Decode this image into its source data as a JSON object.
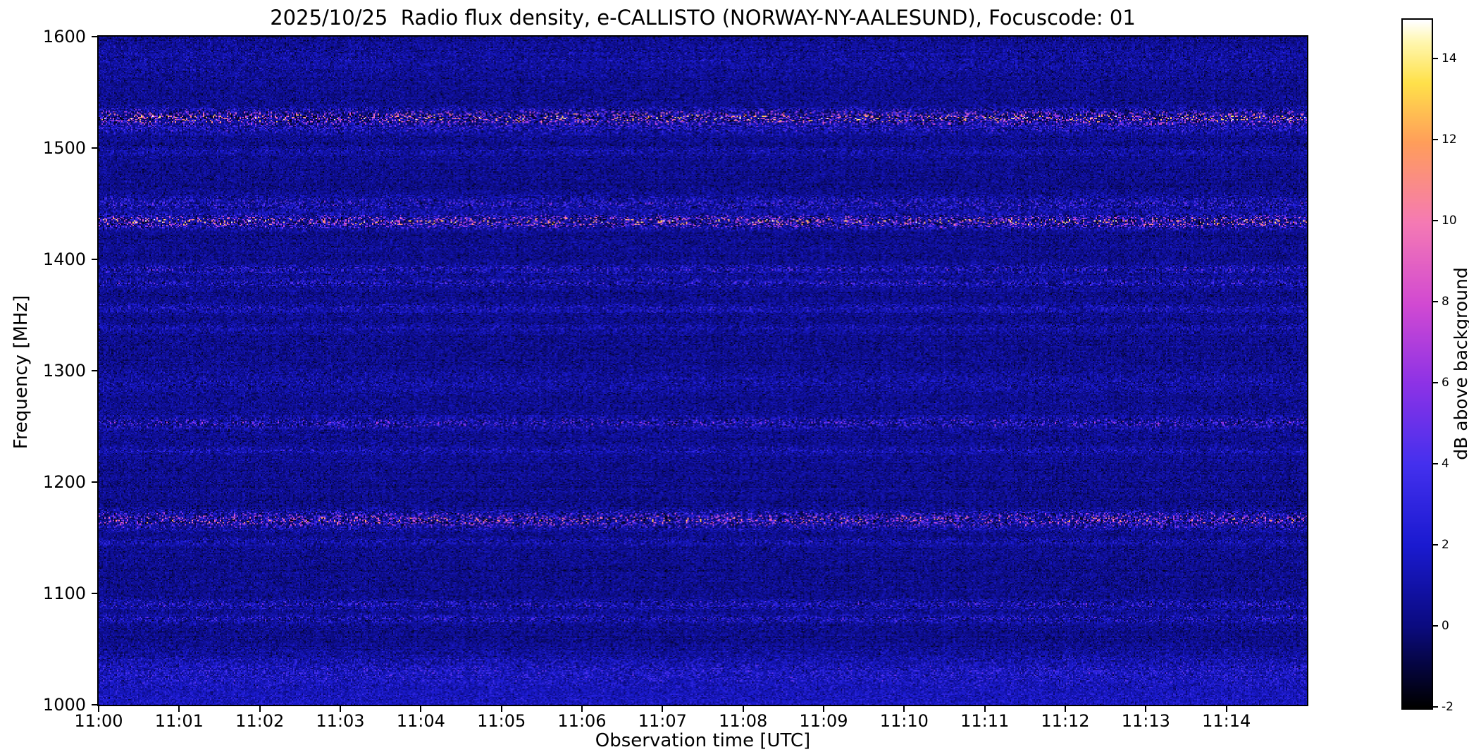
{
  "figure": {
    "kind": "e-CALLISTO solar radio spectrogram"
  },
  "chart_data": {
    "type": "heatmap",
    "title": "2025/10/25  Radio flux density, e-CALLISTO (NORWAY-NY-AALESUND), Focuscode: 01",
    "xlabel": "Observation time [UTC]",
    "ylabel": "Frequency [MHz]",
    "x_tick_labels": [
      "11:00",
      "11:01",
      "11:02",
      "11:03",
      "11:04",
      "11:05",
      "11:06",
      "11:07",
      "11:08",
      "11:09",
      "11:10",
      "11:11",
      "11:12",
      "11:13",
      "11:14"
    ],
    "x_range_minutes": [
      0,
      15
    ],
    "y_tick_values": [
      1000,
      1100,
      1200,
      1300,
      1400,
      1500,
      1600
    ],
    "y_range_mhz": [
      1000,
      1600
    ],
    "colorbar": {
      "label": "dB above background",
      "tick_values": [
        -2,
        0,
        2,
        4,
        6,
        8,
        10,
        12,
        14
      ],
      "value_range": [
        -2,
        15
      ]
    },
    "colormap_stops": [
      {
        "t": 0.0,
        "color": "#000000"
      },
      {
        "t": 0.06,
        "color": "#050540"
      },
      {
        "t": 0.118,
        "color": "#0b0b80"
      },
      {
        "t": 0.235,
        "color": "#1a1ad0"
      },
      {
        "t": 0.353,
        "color": "#4430ee"
      },
      {
        "t": 0.47,
        "color": "#8c32e6"
      },
      {
        "t": 0.588,
        "color": "#d24ad2"
      },
      {
        "t": 0.706,
        "color": "#f57ab4"
      },
      {
        "t": 0.824,
        "color": "#ff9e5a"
      },
      {
        "t": 0.91,
        "color": "#ffe14a"
      },
      {
        "t": 0.97,
        "color": "#fff7b0"
      },
      {
        "t": 1.0,
        "color": "#ffffff"
      }
    ],
    "noise": {
      "base_db": 0.35,
      "sigma_db": 0.65,
      "row_jitter_db": 0.12,
      "col_jitter_db": 0.08
    },
    "interference_bands": [
      {
        "freq_mhz": 1580,
        "width_mhz": 14,
        "peak_db": 1.1,
        "sparsity": 1.3
      },
      {
        "freq_mhz": 1527,
        "width_mhz": 5,
        "peak_db": 9.0,
        "sparsity": 2.2
      },
      {
        "freq_mhz": 1516,
        "width_mhz": 3,
        "peak_db": 2.5,
        "sparsity": 1.8
      },
      {
        "freq_mhz": 1497,
        "width_mhz": 4,
        "peak_db": 1.4,
        "sparsity": 1.5
      },
      {
        "freq_mhz": 1450,
        "width_mhz": 5,
        "peak_db": 3.2,
        "sparsity": 1.8
      },
      {
        "freq_mhz": 1434,
        "width_mhz": 4,
        "peak_db": 9.0,
        "sparsity": 2.2
      },
      {
        "freq_mhz": 1391,
        "width_mhz": 3,
        "peak_db": 3.0,
        "sparsity": 1.8
      },
      {
        "freq_mhz": 1379,
        "width_mhz": 3,
        "peak_db": 3.0,
        "sparsity": 1.8
      },
      {
        "freq_mhz": 1356,
        "width_mhz": 3,
        "peak_db": 2.2,
        "sparsity": 1.7
      },
      {
        "freq_mhz": 1338,
        "width_mhz": 3,
        "peak_db": 1.6,
        "sparsity": 1.5
      },
      {
        "freq_mhz": 1290,
        "width_mhz": 8,
        "peak_db": 1.4,
        "sparsity": 1.4
      },
      {
        "freq_mhz": 1253,
        "width_mhz": 4,
        "peak_db": 4.0,
        "sparsity": 2.0
      },
      {
        "freq_mhz": 1229,
        "width_mhz": 3,
        "peak_db": 1.8,
        "sparsity": 1.6
      },
      {
        "freq_mhz": 1166,
        "width_mhz": 5,
        "peak_db": 7.5,
        "sparsity": 2.2
      },
      {
        "freq_mhz": 1146,
        "width_mhz": 3,
        "peak_db": 1.8,
        "sparsity": 1.6
      },
      {
        "freq_mhz": 1090,
        "width_mhz": 3,
        "peak_db": 3.0,
        "sparsity": 1.8
      },
      {
        "freq_mhz": 1077,
        "width_mhz": 3,
        "peak_db": 2.8,
        "sparsity": 1.8
      },
      {
        "freq_mhz": 1030,
        "width_mhz": 12,
        "peak_db": 2.0,
        "sparsity": 1.3
      }
    ],
    "broadband_low_freq": {
      "below_mhz": 1048,
      "extra_db": 1.4
    }
  }
}
